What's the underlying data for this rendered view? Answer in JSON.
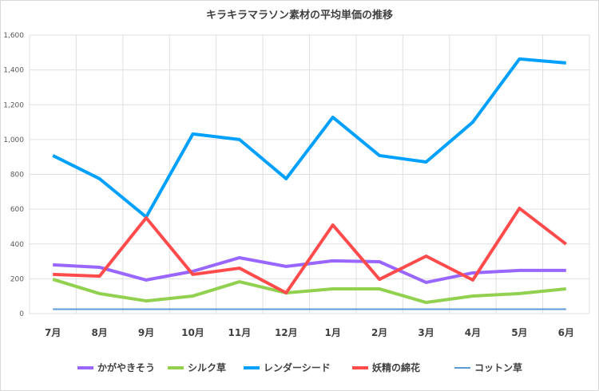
{
  "chart_data": {
    "type": "line",
    "title": "キラキラマラソン素材の平均単価の推移",
    "categories": [
      "7月",
      "8月",
      "9月",
      "10月",
      "11月",
      "12月",
      "1月",
      "2月",
      "3月",
      "4月",
      "5月",
      "6月"
    ],
    "ylim": [
      0,
      1600
    ],
    "yticks": [
      "0",
      "200",
      "400",
      "600",
      "800",
      "1,000",
      "1,200",
      "1,400",
      "1,600"
    ],
    "ytick_values": [
      0,
      200,
      400,
      600,
      800,
      1000,
      1200,
      1400,
      1600
    ],
    "grid": true,
    "legend": "bottom",
    "series": [
      {
        "name": "かがやきそう",
        "color": "#9966ff",
        "width": 4,
        "values": [
          280,
          266,
          193,
          243,
          321,
          271,
          303,
          298,
          179,
          234,
          248,
          248
        ]
      },
      {
        "name": "シルク草",
        "color": "#92d050",
        "width": 4,
        "values": [
          197,
          115,
          73,
          101,
          183,
          119,
          142,
          142,
          64,
          101,
          115,
          142
        ]
      },
      {
        "name": "レンダーシード",
        "color": "#00a0ff",
        "width": 4,
        "values": [
          908,
          775,
          555,
          1032,
          1000,
          775,
          1128,
          908,
          871,
          1100,
          1463,
          1440
        ]
      },
      {
        "name": "妖精の綿花",
        "color": "#ff4b4b",
        "width": 4,
        "values": [
          225,
          215,
          550,
          225,
          261,
          119,
          509,
          197,
          330,
          193,
          605,
          399
        ]
      },
      {
        "name": "コットン草",
        "color": "#5b9bd5",
        "width": 2,
        "values": [
          25,
          25,
          25,
          25,
          25,
          25,
          25,
          25,
          25,
          25,
          25,
          25
        ]
      }
    ]
  }
}
